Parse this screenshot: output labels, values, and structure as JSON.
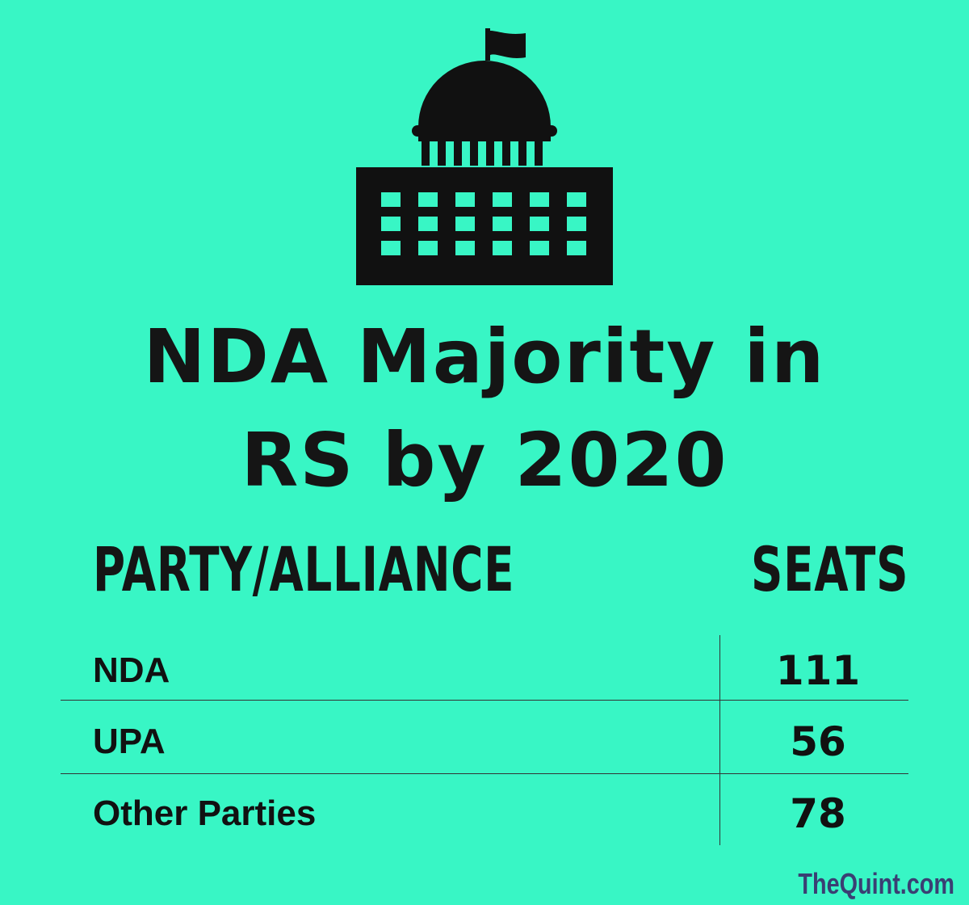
{
  "title": {
    "line1": "NDA Majority in",
    "line2": "RS by 2020"
  },
  "table": {
    "headers": [
      "PARTY/ALLIANCE",
      "SEATS"
    ],
    "rows": [
      {
        "party": "NDA",
        "seats": "111"
      },
      {
        "party": "UPA",
        "seats": "56"
      },
      {
        "party": "Other Parties",
        "seats": "78"
      }
    ]
  },
  "brand": "TheQuint.com",
  "icons": {
    "parliament": "parliament-building-icon"
  },
  "colors": {
    "background": "#38f6c5",
    "text": "#111111",
    "brand": "#3a3f73"
  }
}
